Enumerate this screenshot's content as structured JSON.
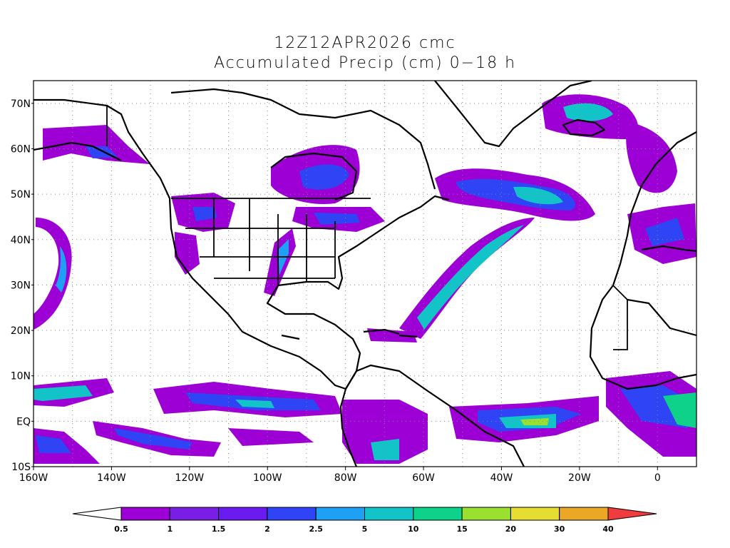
{
  "title_line1": "12Z12APR2026 cmc",
  "title_line2": "Accumulated Precip (cm) 0−18 h",
  "map": {
    "lon_range": [
      -160,
      10
    ],
    "lat_range": [
      -10,
      75
    ],
    "grid": true,
    "x_ticks": [
      "160W",
      "140W",
      "120W",
      "100W",
      "80W",
      "60W",
      "40W",
      "20W",
      "0"
    ],
    "y_ticks": [
      "10S",
      "EQ",
      "10N",
      "20N",
      "30N",
      "40N",
      "50N",
      "60N",
      "70N"
    ]
  },
  "colorbar": {
    "labels": [
      "0.5",
      "1",
      "1.5",
      "2",
      "2.5",
      "5",
      "10",
      "15",
      "20",
      "30",
      "40"
    ],
    "colors": [
      "#9c00d4",
      "#7a1ee6",
      "#6a1cf0",
      "#2f44f5",
      "#1ea0f5",
      "#12c4c8",
      "#0ed289",
      "#9ae030",
      "#e6dc32",
      "#eaa826",
      "#f0782a",
      "#f03c3c"
    ]
  }
}
